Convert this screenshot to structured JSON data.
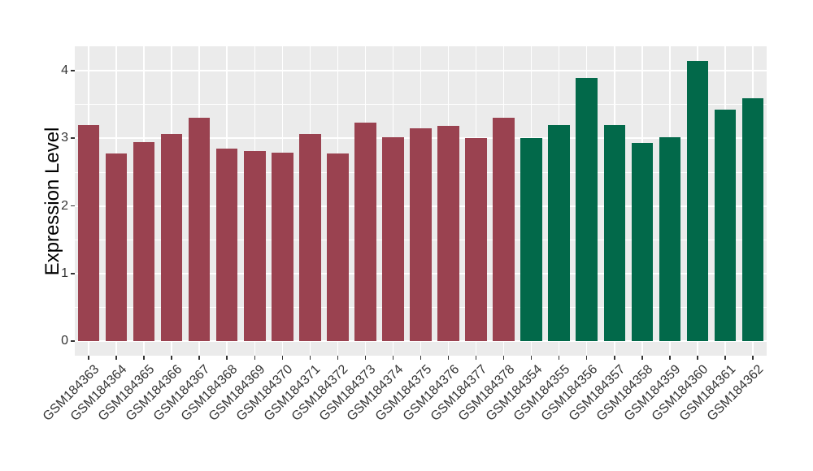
{
  "chart_data": {
    "type": "bar",
    "title": "",
    "xlabel": "",
    "ylabel": "Expression Level",
    "categories": [
      "GSM184363",
      "GSM184364",
      "GSM184365",
      "GSM184366",
      "GSM184367",
      "GSM184368",
      "GSM184369",
      "GSM184370",
      "GSM184371",
      "GSM184372",
      "GSM184373",
      "GSM184374",
      "GSM184375",
      "GSM184376",
      "GSM184377",
      "GSM184378",
      "GSM184354",
      "GSM184355",
      "GSM184356",
      "GSM184357",
      "GSM184358",
      "GSM184359",
      "GSM184360",
      "GSM184361",
      "GSM184362"
    ],
    "values": [
      3.2,
      2.78,
      2.95,
      3.07,
      3.3,
      2.85,
      2.81,
      2.79,
      3.07,
      2.78,
      3.23,
      3.02,
      3.15,
      3.19,
      3.01,
      3.31,
      3.01,
      3.2,
      3.89,
      3.2,
      2.93,
      3.02,
      4.15,
      3.42,
      3.59
    ],
    "groups": [
      0,
      0,
      0,
      0,
      0,
      0,
      0,
      0,
      0,
      0,
      0,
      0,
      0,
      0,
      0,
      0,
      1,
      1,
      1,
      1,
      1,
      1,
      1,
      1,
      1
    ],
    "group_colors": [
      "#9A4250",
      "#02694A"
    ],
    "yticks": [
      0,
      1,
      2,
      3,
      4
    ],
    "ytick_labels": [
      "0",
      "1",
      "2",
      "3",
      "4"
    ],
    "minor_yticks": [
      0.5,
      1.5,
      2.5,
      3.5
    ],
    "ylim": [
      -0.21,
      4.36
    ],
    "grid": true,
    "legend": "none",
    "panel_bg": "#EBEBEB",
    "grid_color": "#FFFFFF",
    "axis_text_color": "#333333",
    "bar_width_fraction": 0.78
  }
}
